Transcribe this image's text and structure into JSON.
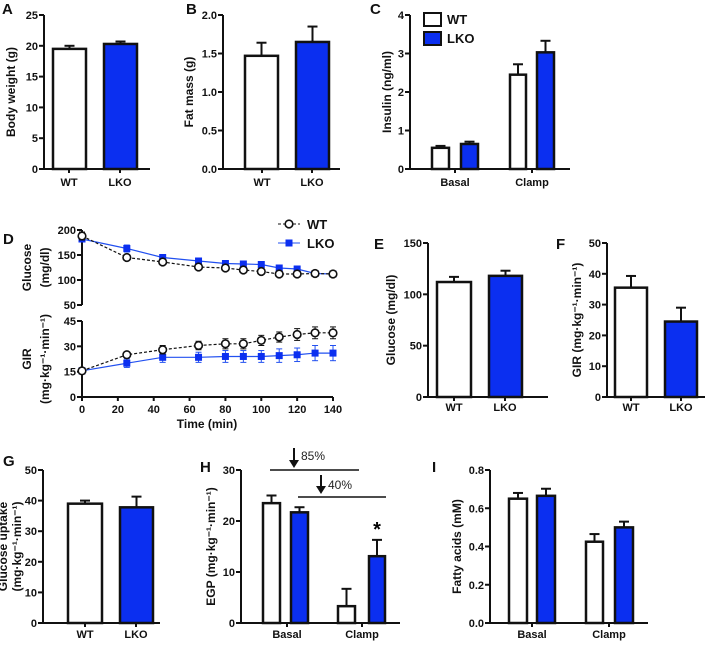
{
  "colors": {
    "wt_fill": "#ffffff",
    "lko_fill": "#0b2ff0",
    "lko_line": "#2250f0",
    "axis": "#111111"
  },
  "legend": {
    "wt": "WT",
    "lko": "LKO"
  },
  "chart_data": [
    {
      "panel": "A",
      "type": "bar",
      "ylabel": [
        "Body weight (g)"
      ],
      "ylim": [
        0,
        25
      ],
      "yticks": [
        "0",
        "5",
        "10",
        "15",
        "20",
        "25"
      ],
      "categories": [
        "WT",
        "LKO"
      ],
      "values": [
        19.5,
        20.3
      ],
      "errors": [
        0.5,
        0.4
      ]
    },
    {
      "panel": "B",
      "type": "bar",
      "ylabel": [
        "Fat mass (g)"
      ],
      "ylim": [
        0,
        2.0
      ],
      "yticks": [
        "0.0",
        "0.5",
        "1.0",
        "1.5",
        "2.0"
      ],
      "categories": [
        "WT",
        "LKO"
      ],
      "values": [
        1.47,
        1.65
      ],
      "errors": [
        0.17,
        0.2
      ]
    },
    {
      "panel": "C",
      "type": "bar",
      "ylabel": [
        "Insulin (ng/ml)"
      ],
      "ylim": [
        0,
        4
      ],
      "yticks": [
        "0",
        "1",
        "2",
        "3",
        "4"
      ],
      "categories": [
        "Basal",
        "Clamp"
      ],
      "legend": "top-left",
      "series": [
        {
          "name": "WT",
          "values": [
            0.55,
            2.45
          ],
          "errors": [
            0.05,
            0.27
          ]
        },
        {
          "name": "LKO",
          "values": [
            0.65,
            3.03
          ],
          "errors": [
            0.06,
            0.3
          ]
        }
      ]
    },
    {
      "panel": "D",
      "type": "line",
      "xlabel": "Time (min)",
      "xlim": [
        0,
        140
      ],
      "xticks": [
        "0",
        "20",
        "40",
        "60",
        "80",
        "100",
        "120",
        "140"
      ],
      "x": [
        0,
        25,
        45,
        65,
        80,
        90,
        100,
        110,
        120,
        130,
        140
      ],
      "legend": "top-right",
      "subplots": [
        {
          "ylabel": [
            "Glucose",
            "(mg/dl)"
          ],
          "ylim": [
            50,
            200
          ],
          "yticks": [
            "50",
            "100",
            "150",
            "200"
          ],
          "series": [
            {
              "name": "WT",
              "values": [
                188,
                145,
                136,
                126,
                124,
                120,
                117,
                112,
                112,
                113,
                112
              ],
              "errors": [
                8,
                5,
                5,
                3,
                3,
                3,
                3,
                3,
                3,
                3,
                3
              ]
            },
            {
              "name": "LKO",
              "values": [
                182,
                163,
                145,
                138,
                133,
                132,
                131,
                124,
                122,
                113,
                112
              ],
              "errors": [
                6,
                7,
                5,
                4,
                5,
                5,
                4,
                4,
                4,
                3,
                3
              ]
            }
          ]
        },
        {
          "ylabel": [
            "GIR",
            "(mg·kg⁻¹·min⁻¹)"
          ],
          "ylim": [
            0,
            45
          ],
          "yticks": [
            "0",
            "15",
            "30",
            "45"
          ],
          "series": [
            {
              "name": "WT",
              "values": [
                15.5,
                25,
                28,
                30.5,
                31.5,
                31.5,
                33.5,
                35.5,
                37,
                38,
                38
              ],
              "errors": [
                1,
                1.5,
                2.5,
                2.5,
                3,
                3,
                3,
                3,
                3.5,
                3.5,
                3.5
              ]
            },
            {
              "name": "LKO",
              "values": [
                15.5,
                20,
                23.5,
                23.5,
                24,
                24,
                24,
                24.5,
                25,
                26,
                26
              ],
              "errors": [
                1,
                2.5,
                3,
                3,
                3.5,
                3.5,
                3.5,
                4,
                4,
                4.5,
                4.5
              ]
            }
          ]
        }
      ]
    },
    {
      "panel": "E",
      "type": "bar",
      "ylabel": [
        "Glucose (mg/dl)"
      ],
      "ylim": [
        0,
        150
      ],
      "yticks": [
        "0",
        "50",
        "100",
        "150"
      ],
      "categories": [
        "WT",
        "LKO"
      ],
      "values": [
        112,
        118
      ],
      "errors": [
        5,
        5
      ]
    },
    {
      "panel": "F",
      "type": "bar",
      "ylabel": [
        "GIR (mg·kg⁻¹·min⁻¹)"
      ],
      "ylim": [
        0,
        50
      ],
      "yticks": [
        "0",
        "10",
        "20",
        "30",
        "40",
        "50"
      ],
      "categories": [
        "WT",
        "LKO"
      ],
      "values": [
        35.5,
        24.5
      ],
      "errors": [
        3.8,
        4.5
      ]
    },
    {
      "panel": "G",
      "type": "bar",
      "ylabel": [
        "Glucose uptake",
        "(mg·kg⁻¹·min⁻¹)"
      ],
      "ylim": [
        0,
        50
      ],
      "yticks": [
        "0",
        "10",
        "20",
        "30",
        "40",
        "50"
      ],
      "categories": [
        "WT",
        "LKO"
      ],
      "values": [
        39,
        37.8
      ],
      "errors": [
        1,
        3.5
      ]
    },
    {
      "panel": "H",
      "type": "bar",
      "ylabel": [
        "EGP (mg·kg⁻¹·min⁻¹)"
      ],
      "ylim": [
        0,
        30
      ],
      "yticks": [
        "0",
        "10",
        "20",
        "30"
      ],
      "categories": [
        "Basal",
        "Clamp"
      ],
      "series": [
        {
          "name": "WT",
          "values": [
            23.5,
            3.3
          ],
          "errors": [
            1.5,
            3.4
          ]
        },
        {
          "name": "LKO",
          "values": [
            21.7,
            13.1
          ],
          "errors": [
            1.0,
            3.2
          ]
        }
      ],
      "annotations": [
        {
          "text": "85%",
          "kind": "decrease-arrow"
        },
        {
          "text": "40%",
          "kind": "decrease-arrow"
        },
        {
          "text": "*",
          "kind": "significance"
        }
      ]
    },
    {
      "panel": "I",
      "type": "bar",
      "ylabel": [
        "Fatty acids (mM)"
      ],
      "ylim": [
        0,
        0.8
      ],
      "yticks": [
        "0.0",
        "0.2",
        "0.4",
        "0.6",
        "0.8"
      ],
      "categories": [
        "Basal",
        "Clamp"
      ],
      "series": [
        {
          "name": "WT",
          "values": [
            0.65,
            0.425
          ],
          "errors": [
            0.03,
            0.04
          ]
        },
        {
          "name": "LKO",
          "values": [
            0.665,
            0.5
          ],
          "errors": [
            0.037,
            0.03
          ]
        }
      ]
    }
  ]
}
